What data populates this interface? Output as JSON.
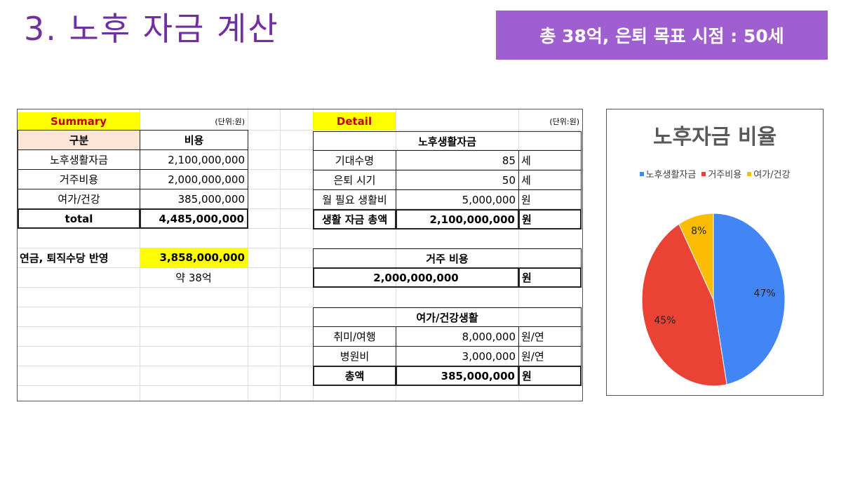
{
  "slide": {
    "title": "3. 노후 자금 계산",
    "goal": "총 38억, 은퇴 목표 시점  : 50세"
  },
  "summary": {
    "title": "Summary",
    "unit": "(단위:원)",
    "header": {
      "category": "구분",
      "cost": "비용"
    },
    "rows": [
      {
        "label": "노후생활자금",
        "value": "2,100,000,000"
      },
      {
        "label": "거주비용",
        "value": "2,000,000,000"
      },
      {
        "label": "여가/건강",
        "value": "385,000,000"
      }
    ],
    "total": {
      "label": "total",
      "value": "4,485,000,000"
    },
    "pension": {
      "label": "연금, 퇴직수당 반영",
      "value": "3,858,000,000",
      "approx": "약 38억"
    }
  },
  "detail": {
    "title": "Detail",
    "unit": "(단위:원)",
    "living": {
      "header": "노후생활자금",
      "rows": [
        {
          "label": "기대수명",
          "value": "85",
          "unit": "세"
        },
        {
          "label": "은퇴 시기",
          "value": "50",
          "unit": "세"
        },
        {
          "label": "월 필요 생활비",
          "value": "5,000,000",
          "unit": "원"
        }
      ],
      "total": {
        "label": "생활 자금 총액",
        "value": "2,100,000,000",
        "unit": "원"
      }
    },
    "housing": {
      "header": "거주 비용",
      "value": "2,000,000,000",
      "unit": "원"
    },
    "leisure": {
      "header": "여가/건강생활",
      "rows": [
        {
          "label": "취미/여행",
          "value": "8,000,000",
          "unit": "원/연"
        },
        {
          "label": "병원비",
          "value": "3,000,000",
          "unit": "원/연"
        }
      ],
      "total": {
        "label": "총액",
        "value": "385,000,000",
        "unit": "원"
      }
    }
  },
  "chart_data": {
    "type": "pie",
    "title": "노후자금 비율",
    "legend_position": "top",
    "categories": [
      "노후생활자금",
      "거주비용",
      "여가/건강"
    ],
    "values": [
      47,
      45,
      8
    ],
    "labels": [
      "47%",
      "45%",
      "8%"
    ],
    "colors": [
      "#4285f4",
      "#ea4335",
      "#fbbc04"
    ]
  }
}
